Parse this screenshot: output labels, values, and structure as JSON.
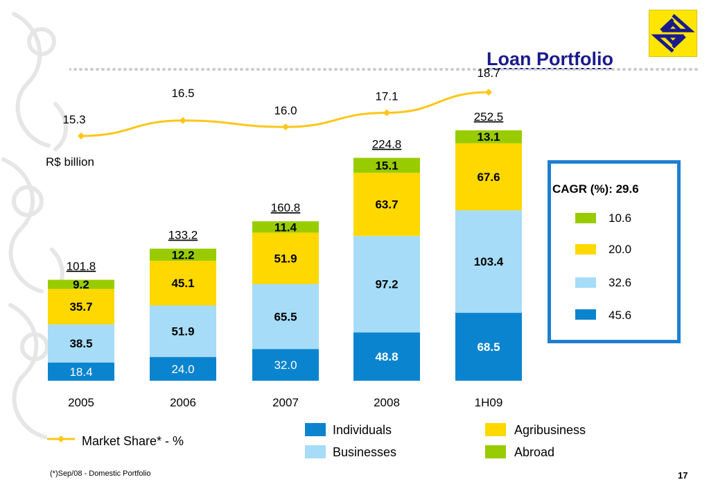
{
  "title": "Loan Portfolio",
  "page_number": "17",
  "footnote": "(*)Sep/08 - Domestic Portfolio",
  "colors": {
    "individuals": "#0b84cf",
    "businesses": "#a6dcf7",
    "agribusiness": "#ffd800",
    "abroad": "#99cc00",
    "market_share_line": "#ffc619",
    "cagr_border": "#1e7fd0",
    "title": "#1a1a8c"
  },
  "cagr": {
    "title": "CAGR (%): 29.6",
    "items": [
      {
        "series": "Abroad",
        "value": "10.6",
        "color": "#99cc00"
      },
      {
        "series": "Agribusiness",
        "value": "20.0",
        "color": "#ffd800"
      },
      {
        "series": "Businesses",
        "value": "32.6",
        "color": "#a6dcf7"
      },
      {
        "series": "Individuals",
        "value": "45.6",
        "color": "#0b84cf"
      }
    ]
  },
  "legend": {
    "items": [
      {
        "label": "Individuals",
        "color": "#0b84cf"
      },
      {
        "label": "Agribusiness",
        "color": "#ffd800"
      },
      {
        "label": "Businesses",
        "color": "#a6dcf7"
      },
      {
        "label": "Abroad",
        "color": "#99cc00"
      }
    ],
    "market_share_label": "Market Share* - %"
  },
  "chart_data": [
    {
      "type": "bar",
      "stacked": true,
      "unit_label": "R$ billion",
      "categories": [
        "2005",
        "2006",
        "2007",
        "2008",
        "1H09"
      ],
      "series": [
        {
          "name": "Individuals",
          "values": [
            18.4,
            24.0,
            32.0,
            48.8,
            68.5
          ],
          "labels": [
            "18.4",
            "24.0",
            "32.0",
            "48.8",
            "68.5"
          ]
        },
        {
          "name": "Businesses",
          "values": [
            38.5,
            51.9,
            65.5,
            97.2,
            103.4
          ],
          "labels": [
            "38.5",
            "51.9",
            "65.5",
            "97.2",
            "103.4"
          ]
        },
        {
          "name": "Agribusiness",
          "values": [
            35.7,
            45.1,
            51.9,
            63.7,
            67.6
          ],
          "labels": [
            "35.7",
            "45.1",
            "51.9",
            "63.7",
            "67.6"
          ]
        },
        {
          "name": "Abroad",
          "values": [
            9.2,
            12.2,
            11.4,
            15.1,
            13.1
          ],
          "labels": [
            "9.2",
            "12.2",
            "11.4",
            "15.1",
            "13.1"
          ]
        }
      ],
      "totals": [
        "101.8",
        "133.2",
        "160.8",
        "224.8",
        "252.5"
      ],
      "ylim": [
        0,
        252.5
      ],
      "grid": false,
      "legend_position": "bottom"
    },
    {
      "type": "line",
      "series": [
        {
          "name": "Market Share* - %",
          "values": [
            15.3,
            16.5,
            16.0,
            17.1,
            18.7
          ],
          "labels": [
            "15.3",
            "16.5",
            "16.0",
            "17.1",
            "18.7"
          ]
        }
      ],
      "categories": [
        "2005",
        "2006",
        "2007",
        "2008",
        "1H09"
      ],
      "ylim": [
        15.3,
        18.7
      ]
    }
  ]
}
